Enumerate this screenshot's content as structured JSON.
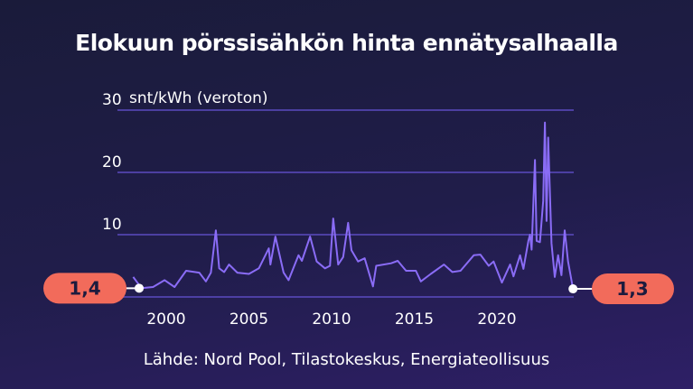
{
  "chart_data": {
    "type": "line",
    "title": "Elokuun pörssisähkön hinta ennätysalhaalla",
    "ylabel": "snt/kWh (veroton)",
    "xlabel": "",
    "source": "Lähde: Nord Pool, Tilastokeskus, Energiateollisuus",
    "ylim": [
      0,
      30
    ],
    "xlim": [
      1998,
      2024.6
    ],
    "yticks": [
      "10",
      "20",
      "30"
    ],
    "xticks": [
      "2000",
      "2005",
      "2010",
      "2015",
      "2020"
    ],
    "grid": true,
    "start_label": "1,4",
    "end_label": "1,3",
    "colors": {
      "line": "#8a6cf6",
      "grid": "#5b4bc0",
      "pill": "#f26b5b"
    },
    "series": [
      {
        "x": [
          1998.0,
          1998.2,
          1998.5,
          1999.2,
          1999.9,
          2000.5,
          2001.2,
          2002.0,
          2002.4,
          2002.7,
          2003.0,
          2003.2,
          2003.5,
          2003.8,
          2004.3,
          2005.0,
          2005.6,
          2006.2,
          2006.3,
          2006.6,
          2007.1,
          2007.4,
          2008.0,
          2008.2,
          2008.7,
          2009.1,
          2009.6,
          2009.9,
          2010.1,
          2010.4,
          2010.7,
          2011.0,
          2011.2,
          2011.6,
          2012.0,
          2012.5,
          2012.7,
          2013.6,
          2014.0,
          2014.5,
          2015.1,
          2015.4,
          2016.0,
          2016.8,
          2017.3,
          2017.8,
          2018.6,
          2019.0,
          2019.5,
          2019.8,
          2020.3,
          2020.8,
          2021.0,
          2021.4,
          2021.6,
          2021.9,
          2022.0,
          2022.1,
          2022.3,
          2022.4,
          2022.6,
          2022.8,
          2022.9,
          2023.0,
          2023.1,
          2023.3,
          2023.5,
          2023.7,
          2023.9,
          2024.1,
          2024.3,
          2024.6
        ],
        "y": [
          3.2,
          2.5,
          1.4,
          1.6,
          2.7,
          1.6,
          4.2,
          3.9,
          2.5,
          3.9,
          10.7,
          4.6,
          4.0,
          5.2,
          3.9,
          3.7,
          4.6,
          7.8,
          5.2,
          9.7,
          3.9,
          2.7,
          6.7,
          5.8,
          9.7,
          5.7,
          4.6,
          5.0,
          12.6,
          5.2,
          6.4,
          11.9,
          7.5,
          5.7,
          6.2,
          1.7,
          5.0,
          5.4,
          5.8,
          4.2,
          4.2,
          2.5,
          3.7,
          5.2,
          4.0,
          4.2,
          6.7,
          6.8,
          5.0,
          5.7,
          2.3,
          5.2,
          3.3,
          6.7,
          4.5,
          9.0,
          10.0,
          7.6,
          22.0,
          9.0,
          8.8,
          15.4,
          28.0,
          12.2,
          25.6,
          8.6,
          3.2,
          6.7,
          3.5,
          10.7,
          5.7,
          1.3
        ]
      }
    ]
  }
}
